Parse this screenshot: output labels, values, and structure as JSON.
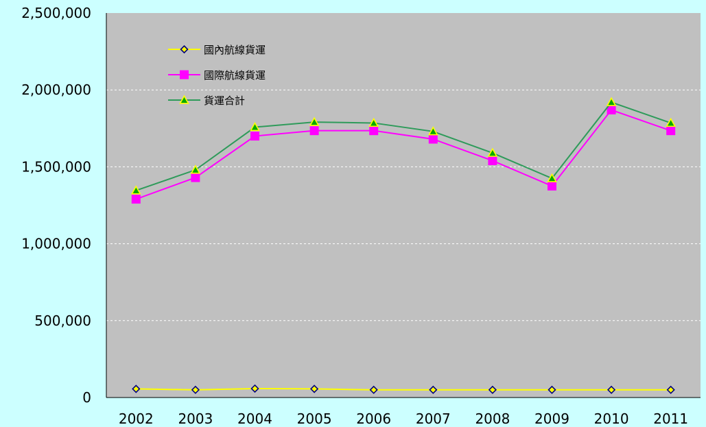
{
  "chart_data": {
    "type": "line",
    "title": "",
    "xlabel": "",
    "ylabel": "",
    "x": [
      "2002",
      "2003",
      "2004",
      "2005",
      "2006",
      "2007",
      "2008",
      "2009",
      "2010",
      "2011"
    ],
    "ylim": [
      0,
      2500000
    ],
    "yticks": [
      "0",
      "500,000",
      "1,000,000",
      "1,500,000",
      "2,000,000",
      "2,500,000"
    ],
    "ytick_values": [
      0,
      500000,
      1000000,
      1500000,
      2000000,
      2500000
    ],
    "grid": true,
    "legend_position": "top-left",
    "series": [
      {
        "name": "國內航線貨運",
        "marker": "diamond",
        "color": "#FFFF00",
        "marker_fill": "#FFFF00",
        "marker_edge": "#000080",
        "values": [
          56000,
          50000,
          58000,
          56000,
          50000,
          50000,
          50000,
          50000,
          50000,
          50000
        ]
      },
      {
        "name": "國際航線貨運",
        "marker": "square",
        "color": "#FF00FF",
        "marker_fill": "#FF00FF",
        "marker_edge": "#FF00FF",
        "values": [
          1290000,
          1430000,
          1700000,
          1735000,
          1735000,
          1680000,
          1540000,
          1375000,
          1870000,
          1735000
        ]
      },
      {
        "name": "貨運合計",
        "marker": "triangle",
        "color": "#2E9B5A",
        "marker_fill": "#00AA00",
        "marker_edge": "#FFFF00",
        "values": [
          1346000,
          1480000,
          1758000,
          1791000,
          1785000,
          1730000,
          1590000,
          1425000,
          1920000,
          1785000
        ]
      }
    ],
    "colors": {
      "outer_background": "#CCFFFF",
      "plot_background": "#C0C0C0",
      "gridline": "#FFFFFF",
      "axis": "#000000"
    }
  }
}
